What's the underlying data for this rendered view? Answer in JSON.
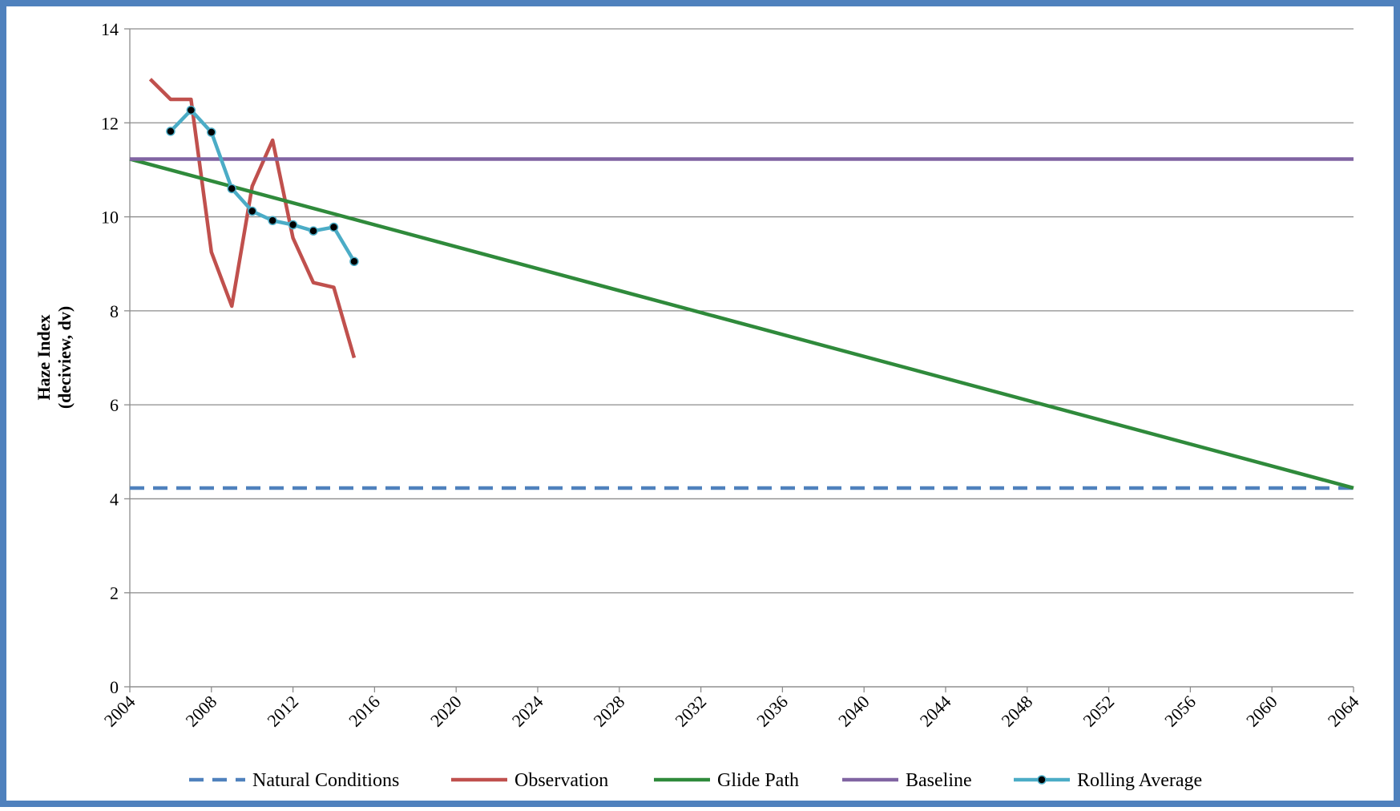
{
  "chart_data": {
    "type": "line",
    "ylabel": [
      "Haze Index",
      "(deciview, dv)"
    ],
    "xlim": [
      2004,
      2064
    ],
    "xticks": [
      2004,
      2008,
      2012,
      2016,
      2020,
      2024,
      2028,
      2032,
      2036,
      2040,
      2044,
      2048,
      2052,
      2056,
      2060,
      2064
    ],
    "ylim": [
      0,
      14
    ],
    "yticks": [
      0,
      2,
      4,
      6,
      8,
      10,
      12,
      14
    ],
    "grid": true,
    "legend": "bottom",
    "series": [
      {
        "name": "Natural Conditions",
        "color": "#4f81bd",
        "dashed": true,
        "markers": false,
        "x": [
          2004,
          2064
        ],
        "values": [
          4.23,
          4.23
        ]
      },
      {
        "name": "Observation",
        "color": "#c0504d",
        "dashed": false,
        "markers": false,
        "x": [
          2005,
          2006,
          2007,
          2008,
          2009,
          2010,
          2011,
          2012,
          2013,
          2014,
          2015
        ],
        "values": [
          12.93,
          12.5,
          12.5,
          9.25,
          8.1,
          10.65,
          11.63,
          9.55,
          8.6,
          8.5,
          7.0
        ]
      },
      {
        "name": "Glide Path",
        "color": "#2f8a3b",
        "dashed": false,
        "markers": false,
        "x": [
          2004,
          2064
        ],
        "values": [
          11.23,
          4.23
        ]
      },
      {
        "name": "Baseline",
        "color": "#8064a2",
        "dashed": false,
        "markers": false,
        "x": [
          2004,
          2064
        ],
        "values": [
          11.23,
          11.23
        ]
      },
      {
        "name": "Rolling Average",
        "color": "#4bacc6",
        "dashed": false,
        "markers": true,
        "x": [
          2006,
          2007,
          2008,
          2009,
          2010,
          2011,
          2012,
          2013,
          2014,
          2015
        ],
        "values": [
          11.82,
          12.27,
          11.8,
          10.6,
          10.12,
          9.92,
          9.83,
          9.7,
          9.78,
          9.05
        ]
      }
    ]
  }
}
